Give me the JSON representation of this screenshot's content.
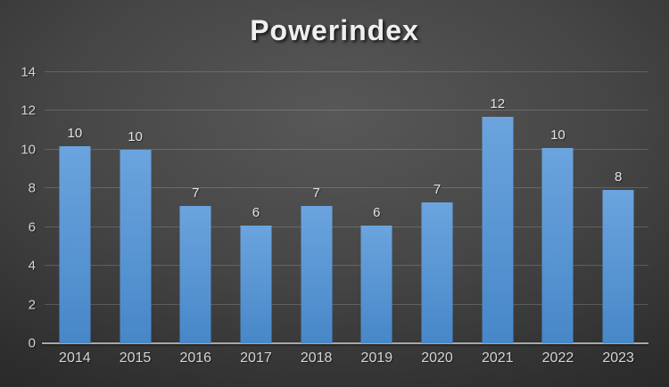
{
  "chart_data": {
    "type": "bar",
    "title": "Powerindex",
    "categories": [
      "2014",
      "2015",
      "2016",
      "2017",
      "2018",
      "2019",
      "2020",
      "2021",
      "2022",
      "2023"
    ],
    "values": [
      10.2,
      10.0,
      7.1,
      6.1,
      7.1,
      6.1,
      7.3,
      11.7,
      10.1,
      7.9
    ],
    "data_labels": [
      "10",
      "10",
      "7",
      "6",
      "7",
      "6",
      "7",
      "12",
      "10",
      "8"
    ],
    "xlabel": "",
    "ylabel": "",
    "ylim": [
      0,
      14
    ],
    "yticks": [
      0,
      2,
      4,
      6,
      8,
      10,
      12,
      14
    ],
    "grid": "horizontal",
    "legend_position": "none"
  },
  "colors": {
    "background_center": "#585858",
    "background_mid": "#454545",
    "background_dark": "#2e2e2e",
    "background_edge": "#232323",
    "bar_top": "#6ba4de",
    "bar_bottom": "#4787c8",
    "gridline": "rgba(255,255,255,0.17)",
    "axis_line": "#a8a8a8",
    "title_text": "#efefef",
    "tick_text": "#d4d4d4",
    "data_label_text": "#e4e4e4"
  }
}
